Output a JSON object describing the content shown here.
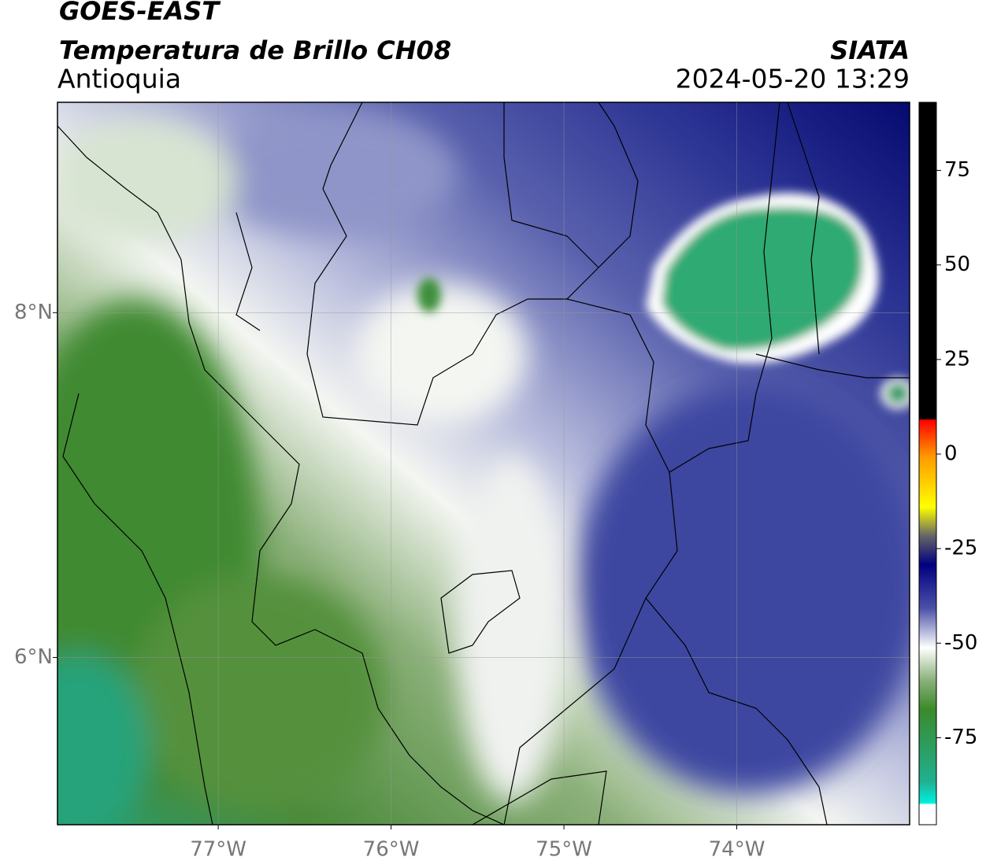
{
  "header": {
    "satellite": "GOES-EAST",
    "product": "Temperatura de Brillo CH08",
    "region": "Antioquia",
    "source": "SIATA",
    "datetime": "2024-05-20 13:29"
  },
  "map": {
    "xlim": [
      -77.93,
      -73.0
    ],
    "ylim": [
      5.03,
      9.22
    ],
    "xticks": [
      {
        "value": -77,
        "label": "77°W"
      },
      {
        "value": -76,
        "label": "76°W"
      },
      {
        "value": -75,
        "label": "75°W"
      },
      {
        "value": -74,
        "label": "74°W"
      }
    ],
    "yticks": [
      {
        "value": 8,
        "label": "8°N"
      },
      {
        "value": 6,
        "label": "6°N"
      }
    ]
  },
  "colorbar": {
    "lim": [
      -98,
      93
    ],
    "ticks": [
      75,
      50,
      25,
      0,
      -25,
      -50,
      -75
    ]
  }
}
